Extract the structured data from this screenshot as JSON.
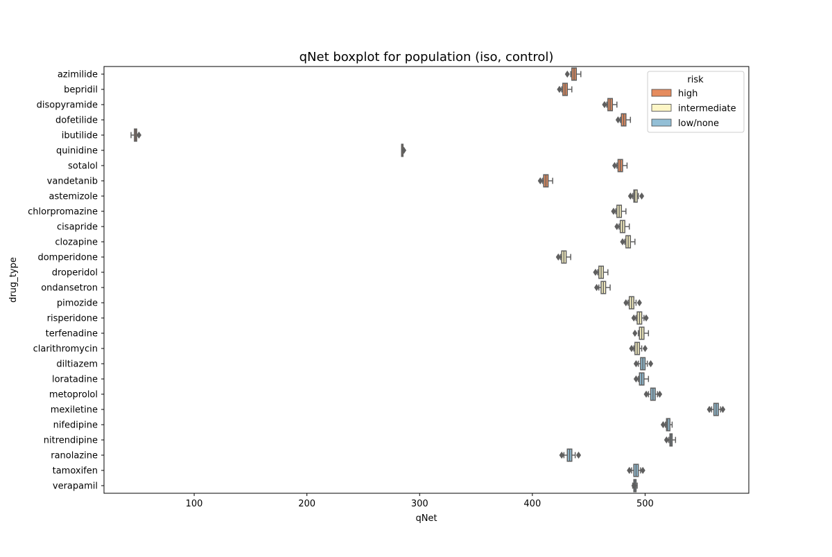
{
  "chart_data": {
    "type": "boxplot",
    "title": "qNet boxplot for population (iso, control)",
    "xlabel": "qNet",
    "ylabel": "drug_type",
    "xlim": [
      20,
      592
    ],
    "xticks": [
      100,
      200,
      300,
      400,
      500
    ],
    "orientation": "horizontal",
    "grid": false,
    "legend": {
      "title": "risk",
      "placement": "top-right",
      "entries": [
        {
          "label": "high",
          "color": "#e58c5e"
        },
        {
          "label": "intermediate",
          "color": "#fdf6c6"
        },
        {
          "label": "low/none",
          "color": "#93bfd6"
        }
      ]
    },
    "categories": [
      "azimilide",
      "bepridil",
      "disopyramide",
      "dofetilide",
      "ibutilide",
      "quinidine",
      "sotalol",
      "vandetanib",
      "astemizole",
      "chlorpromazine",
      "cisapride",
      "clozapine",
      "domperidone",
      "droperidol",
      "ondansetron",
      "pimozide",
      "risperidone",
      "terfenadine",
      "clarithromycin",
      "diltiazem",
      "loratadine",
      "metoprolol",
      "mexiletine",
      "nifedipine",
      "nitrendipine",
      "ranolazine",
      "tamoxifen",
      "verapamil"
    ],
    "boxes": [
      {
        "drug": "azimilide",
        "risk": "high",
        "whisker_low": 434,
        "q1": 435,
        "median": 437,
        "q3": 439,
        "whisker_high": 443,
        "outliers": [
          431
        ]
      },
      {
        "drug": "bepridil",
        "risk": "high",
        "whisker_low": 426,
        "q1": 427,
        "median": 429,
        "q3": 431,
        "whisker_high": 435,
        "outliers": [
          424
        ]
      },
      {
        "drug": "disopyramide",
        "risk": "high",
        "whisker_low": 466,
        "q1": 467,
        "median": 469,
        "q3": 471,
        "whisker_high": 475,
        "outliers": [
          464
        ]
      },
      {
        "drug": "dofetilide",
        "risk": "high",
        "whisker_low": 478,
        "q1": 479,
        "median": 481,
        "q3": 483,
        "whisker_high": 487,
        "outliers": [
          476
        ]
      },
      {
        "drug": "ibutilide",
        "risk": "high",
        "whisker_low": 44,
        "q1": 47,
        "median": 48,
        "q3": 49,
        "whisker_high": 51,
        "outliers": [
          51
        ]
      },
      {
        "drug": "quinidine",
        "risk": "high",
        "whisker_low": 284,
        "q1": 284,
        "median": 285,
        "q3": 285,
        "whisker_high": 286,
        "outliers": [
          286
        ]
      },
      {
        "drug": "sotalol",
        "risk": "high",
        "whisker_low": 475,
        "q1": 476,
        "median": 478,
        "q3": 480,
        "whisker_high": 484,
        "outliers": [
          473
        ]
      },
      {
        "drug": "vandetanib",
        "risk": "high",
        "whisker_low": 409,
        "q1": 410,
        "median": 412,
        "q3": 414,
        "whisker_high": 418,
        "outliers": [
          407
        ]
      },
      {
        "drug": "astemizole",
        "risk": "intermediate",
        "whisker_low": 489,
        "q1": 490,
        "median": 491,
        "q3": 493,
        "whisker_high": 494,
        "outliers": [
          487,
          497
        ]
      },
      {
        "drug": "chlorpromazine",
        "risk": "intermediate",
        "whisker_low": 474,
        "q1": 475,
        "median": 477,
        "q3": 479,
        "whisker_high": 483,
        "outliers": [
          472
        ]
      },
      {
        "drug": "cisapride",
        "risk": "intermediate",
        "whisker_low": 477,
        "q1": 478,
        "median": 480,
        "q3": 482,
        "whisker_high": 486,
        "outliers": [
          475
        ]
      },
      {
        "drug": "clozapine",
        "risk": "intermediate",
        "whisker_low": 482,
        "q1": 483,
        "median": 485,
        "q3": 487,
        "whisker_high": 491,
        "outliers": [
          480
        ]
      },
      {
        "drug": "domperidone",
        "risk": "intermediate",
        "whisker_low": 425,
        "q1": 426,
        "median": 428,
        "q3": 430,
        "whisker_high": 434,
        "outliers": [
          423
        ]
      },
      {
        "drug": "droperidol",
        "risk": "intermediate",
        "whisker_low": 458,
        "q1": 459,
        "median": 461,
        "q3": 463,
        "whisker_high": 467,
        "outliers": [
          456
        ]
      },
      {
        "drug": "ondansetron",
        "risk": "intermediate",
        "whisker_low": 459,
        "q1": 461,
        "median": 463,
        "q3": 465,
        "whisker_high": 469,
        "outliers": [
          457
        ]
      },
      {
        "drug": "pimozide",
        "risk": "intermediate",
        "whisker_low": 485,
        "q1": 486,
        "median": 488,
        "q3": 490,
        "whisker_high": 492,
        "outliers": [
          483,
          495
        ]
      },
      {
        "drug": "risperidone",
        "risk": "intermediate",
        "whisker_low": 492,
        "q1": 493,
        "median": 495,
        "q3": 497,
        "whisker_high": 499,
        "outliers": [
          490,
          501
        ]
      },
      {
        "drug": "terfenadine",
        "risk": "intermediate",
        "whisker_low": 494,
        "q1": 495,
        "median": 497,
        "q3": 499,
        "whisker_high": 503,
        "outliers": [
          491
        ]
      },
      {
        "drug": "clarithromycin",
        "risk": "intermediate",
        "whisker_low": 490,
        "q1": 491,
        "median": 493,
        "q3": 495,
        "whisker_high": 497,
        "outliers": [
          488,
          500
        ]
      },
      {
        "drug": "diltiazem",
        "risk": "low/none",
        "whisker_low": 494,
        "q1": 496,
        "median": 498,
        "q3": 500,
        "whisker_high": 502,
        "outliers": [
          492,
          505
        ]
      },
      {
        "drug": "loratadine",
        "risk": "low/none",
        "whisker_low": 494,
        "q1": 495,
        "median": 497,
        "q3": 499,
        "whisker_high": 503,
        "outliers": [
          492
        ]
      },
      {
        "drug": "metoprolol",
        "risk": "low/none",
        "whisker_low": 503,
        "q1": 505,
        "median": 507,
        "q3": 509,
        "whisker_high": 511,
        "outliers": [
          501,
          513
        ]
      },
      {
        "drug": "mexiletine",
        "risk": "low/none",
        "whisker_low": 559,
        "q1": 561,
        "median": 563,
        "q3": 565,
        "whisker_high": 567,
        "outliers": [
          557,
          569
        ]
      },
      {
        "drug": "nifedipine",
        "risk": "low/none",
        "whisker_low": 518,
        "q1": 519,
        "median": 520,
        "q3": 522,
        "whisker_high": 524,
        "outliers": [
          516
        ]
      },
      {
        "drug": "nitrendipine",
        "risk": "low/none",
        "whisker_low": 521,
        "q1": 522,
        "median": 523,
        "q3": 524,
        "whisker_high": 527,
        "outliers": [
          519
        ]
      },
      {
        "drug": "ranolazine",
        "risk": "low/none",
        "whisker_low": 428,
        "q1": 431,
        "median": 433,
        "q3": 435,
        "whisker_high": 438,
        "outliers": [
          426,
          441
        ]
      },
      {
        "drug": "tamoxifen",
        "risk": "low/none",
        "whisker_low": 488,
        "q1": 490,
        "median": 492,
        "q3": 494,
        "whisker_high": 496,
        "outliers": [
          486,
          498
        ]
      },
      {
        "drug": "verapamil",
        "risk": "low/none",
        "whisker_low": 489,
        "q1": 490,
        "median": 491,
        "q3": 492,
        "whisker_high": 493,
        "outliers": [
          490
        ]
      }
    ]
  }
}
